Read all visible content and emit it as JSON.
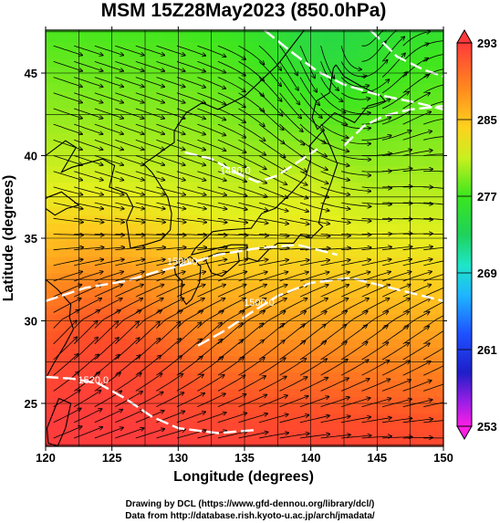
{
  "chart_data": {
    "type": "heatmap",
    "title": "MSM 15Z28May2023 (850.0hPa)",
    "xlabel": "Longitude (degrees)",
    "ylabel": "Latitude  (degrees)",
    "xlim": [
      120,
      150
    ],
    "ylim": [
      22.4,
      47.6
    ],
    "x_ticks": [
      120,
      125,
      130,
      135,
      140,
      145,
      150
    ],
    "y_ticks": [
      25,
      30,
      35,
      40,
      45
    ],
    "x_tick_labels": [
      "120",
      "125",
      "130",
      "135",
      "140",
      "145",
      "150"
    ],
    "y_tick_labels": [
      "25",
      "30",
      "35",
      "40",
      "45"
    ],
    "colorbar": {
      "min": 253,
      "max": 293,
      "ticks": [
        293,
        285,
        277,
        269,
        261,
        253
      ],
      "tick_labels": [
        "293",
        "285",
        "277",
        "269",
        "261",
        "253"
      ]
    },
    "contour_labels": [
      {
        "text": "1520.0",
        "lon": 123.6,
        "lat": 26.2
      },
      {
        "text": "1500.0",
        "lon": 136.1,
        "lat": 30.9
      },
      {
        "text": "1500.0",
        "lon": 130.3,
        "lat": 33.4
      },
      {
        "text": "1480.0",
        "lon": 134.3,
        "lat": 38.9
      }
    ],
    "grid": true
  },
  "credits": {
    "line1": "Drawing by DCL (https://www.gfd-dennou.org/library/dcl/)",
    "line2": "Data from http://database.rish.kyoto-u.ac.jp/arch/jmadata/"
  }
}
